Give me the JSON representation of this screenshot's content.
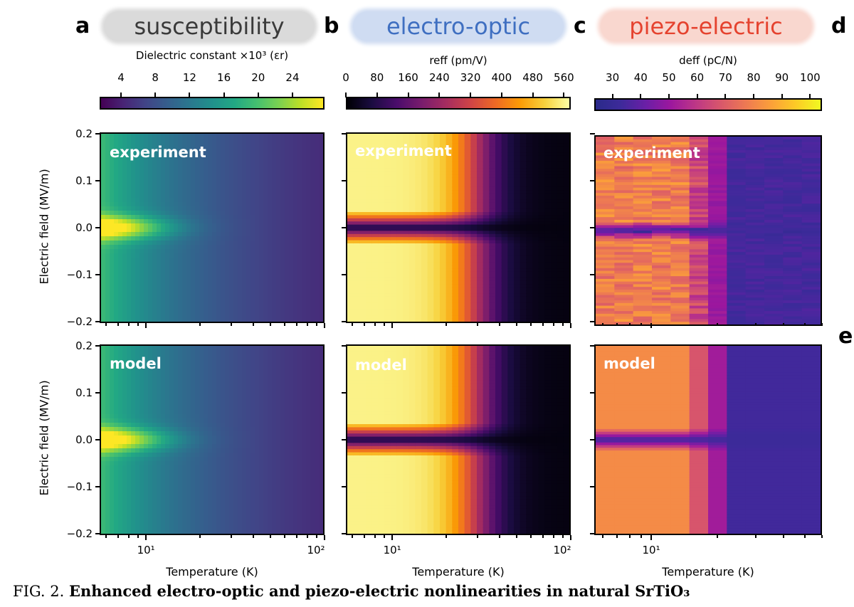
{
  "panel_letters": [
    "a",
    "b",
    "c",
    "d",
    "e"
  ],
  "headers": {
    "a": "susceptibility",
    "b": "electro-optic",
    "c": "piezo-electric"
  },
  "colorbars": {
    "a": {
      "title": "Dielectric constant ×10³ (εr)",
      "ticks": [
        "4",
        "8",
        "12",
        "16",
        "20",
        "24"
      ]
    },
    "b": {
      "title": "reff (pm/V)",
      "ticks": [
        "0",
        "80",
        "160",
        "240",
        "320",
        "400",
        "480",
        "560"
      ]
    },
    "c": {
      "title": "deff (pC/N)",
      "ticks": [
        "30",
        "40",
        "50",
        "60",
        "70",
        "80",
        "90",
        "100"
      ]
    }
  },
  "row_labels": {
    "top": "experiment",
    "bottom": "model"
  },
  "y_axis": {
    "label": "Electric field (MV/m)",
    "ticks": [
      "0.2",
      "0.1",
      "0.0",
      "−0.1",
      "−0.2"
    ]
  },
  "x_axis": {
    "label": "Temperature (K)",
    "ticks_ab": [
      "10¹",
      "10²"
    ],
    "ticks_c": [
      "10¹"
    ]
  },
  "caption": {
    "prefix": "FIG. 2.",
    "text": "Enhanced electro-optic and piezo-electric nonlinearities in natural SrTiO₃"
  },
  "colors": {
    "viridis_low": "#440154",
    "viridis_high": "#fde725",
    "inferno_low": "#000004",
    "inferno_high": "#fcffa4",
    "plasma_low": "#2a2a8a",
    "plasma_high": "#f0f921"
  }
}
